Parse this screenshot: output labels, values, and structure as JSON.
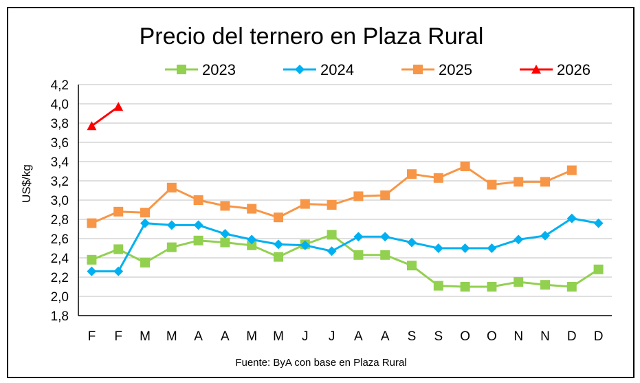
{
  "chart_data": {
    "type": "line",
    "title": "Precio del ternero en Plaza Rural",
    "ylabel": "US$/kg",
    "xlabel": "",
    "source": "Fuente: ByA con base en Plaza Rural",
    "categories": [
      "F",
      "F",
      "M",
      "M",
      "A",
      "A",
      "M",
      "M",
      "J",
      "J",
      "A",
      "A",
      "S",
      "S",
      "O",
      "O",
      "N",
      "N",
      "D",
      "D"
    ],
    "ylim": [
      1.8,
      4.2
    ],
    "yticks": [
      "1,8",
      "2,0",
      "2,2",
      "2,4",
      "2,6",
      "2,8",
      "3,0",
      "3,2",
      "3,4",
      "3,6",
      "3,8",
      "4,0",
      "4,2"
    ],
    "grid": true,
    "legend": "top",
    "series": [
      {
        "name": "2023",
        "color": "#92d050",
        "marker": "square",
        "values": [
          2.38,
          2.49,
          2.35,
          2.51,
          2.58,
          2.56,
          2.53,
          2.41,
          2.54,
          2.64,
          2.43,
          2.43,
          2.32,
          2.11,
          2.1,
          2.1,
          2.15,
          2.12,
          2.1,
          2.28
        ]
      },
      {
        "name": "2024",
        "color": "#00b0f0",
        "marker": "diamond",
        "values": [
          2.26,
          2.26,
          2.76,
          2.74,
          2.74,
          2.65,
          2.59,
          2.54,
          2.53,
          2.47,
          2.62,
          2.62,
          2.56,
          2.5,
          2.5,
          2.5,
          2.59,
          2.63,
          2.81,
          2.76
        ]
      },
      {
        "name": "2025",
        "color": "#f79646",
        "marker": "square",
        "values": [
          2.76,
          2.88,
          2.87,
          3.13,
          3.0,
          2.94,
          2.91,
          2.82,
          2.96,
          2.95,
          3.04,
          3.05,
          3.27,
          3.23,
          3.35,
          3.16,
          3.19,
          3.19,
          3.31,
          null
        ]
      },
      {
        "name": "2026",
        "color": "#ff0000",
        "marker": "triangle",
        "values": [
          3.77,
          3.97,
          null,
          null,
          null,
          null,
          null,
          null,
          null,
          null,
          null,
          null,
          null,
          null,
          null,
          null,
          null,
          null,
          null,
          null
        ]
      }
    ]
  }
}
